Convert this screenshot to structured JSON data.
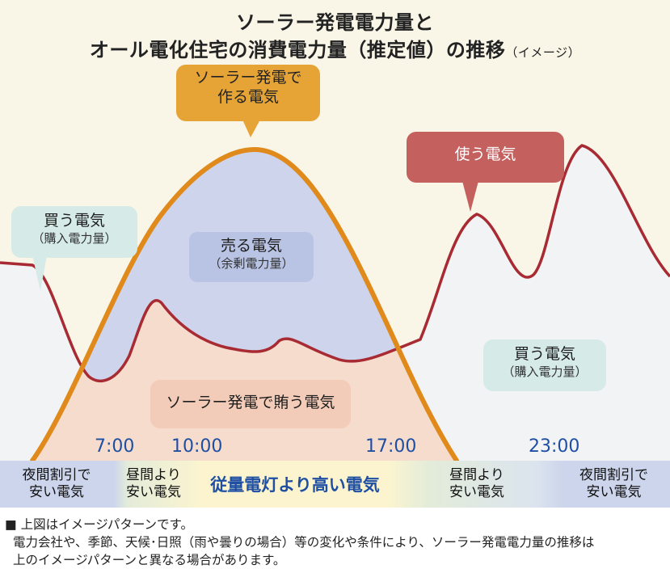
{
  "title": {
    "line1": "ソーラー発電電力量と",
    "line2": "オール電化住宅の消費電力量（推定値）の推移",
    "line2_suffix": "（イメージ）"
  },
  "callouts": {
    "solar_made": {
      "line1": "ソーラー発電で",
      "line2": "作る電気"
    },
    "used": "使う電気",
    "buy_left": {
      "main": "買う電気",
      "sub": "（購入電力量）"
    },
    "sell": {
      "main": "売る電気",
      "sub": "（余剰電力量）"
    },
    "buy_right": {
      "main": "買う電気",
      "sub": "（購入電力量）"
    },
    "cover": "ソーラー発電で賄う電気"
  },
  "time_labels": [
    "7:00",
    "10:00",
    "17:00",
    "23:00"
  ],
  "price_band": {
    "night_left": {
      "line1": "夜間割引で",
      "line2": "安い電気"
    },
    "day_left": {
      "line1": "昼間より",
      "line2": "安い電気"
    },
    "peak": "従量電灯より高い電気",
    "day_right": {
      "line1": "昼間より",
      "line2": "安い電気"
    },
    "night_right": {
      "line1": "夜間割引で",
      "line2": "安い電気"
    }
  },
  "notes": {
    "line1": "■ 上図はイメージパターンです。",
    "line2": "電力会社や、季節、天候･日照（雨や曇りの場合）等の変化や条件により、ソーラー発電電力量の推移は",
    "line3": "上のイメージパターンと異なる場合があります。"
  },
  "colors": {
    "background": "#f9f5e7",
    "solar_curve": "#e08a1c",
    "consumption_curve": "#a82a32",
    "sell_area": "#cdd4ec",
    "cover_area": "#f5dccd",
    "buy_area": "#f2f3f5",
    "time_text": "#1f4fa3",
    "callout_orange": "#e6a437",
    "callout_red": "#c4605e",
    "callout_blue": "#b9c4e4",
    "callout_teal": "#d6ebe8",
    "callout_peach": "#f2ccb8"
  }
}
